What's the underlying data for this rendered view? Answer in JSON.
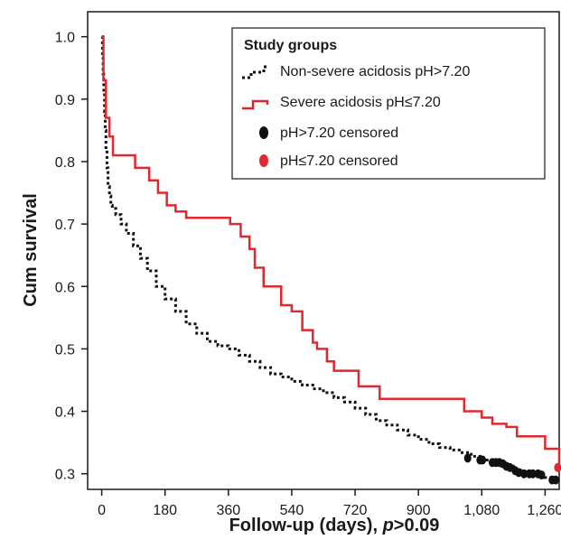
{
  "chart_data": {
    "type": "line",
    "step": true,
    "xlabel": "Follow-up (days), ",
    "xlabel_italic": "p",
    "xlabel_suffix": ">0.09",
    "ylabel": "Cum survival",
    "xlim": [
      -40,
      1300
    ],
    "ylim": [
      0.275,
      1.04
    ],
    "x_ticks": [
      0,
      180,
      360,
      540,
      720,
      900,
      1080,
      1260
    ],
    "x_tick_labels": [
      "0",
      "180",
      "360",
      "540",
      "720",
      "900",
      "1,080",
      "1,260"
    ],
    "y_ticks": [
      0.3,
      0.4,
      0.5,
      0.6,
      0.7,
      0.8,
      0.9,
      1.0
    ],
    "y_tick_labels": [
      "0.3",
      "0.4",
      "0.5",
      "0.6",
      "0.7",
      "0.8",
      "0.9",
      "1.0"
    ],
    "legend": {
      "title": "Study groups",
      "position": "top-right",
      "entries": [
        "Non-severe acidosis pH>7.20",
        "Severe acidosis pH≤7.20",
        "pH>7.20 censored",
        "pH≤7.20 censored"
      ]
    },
    "series": [
      {
        "name": "Non-severe acidosis pH>7.20",
        "color": "#111111",
        "style": "dotted",
        "x": [
          0,
          2,
          4,
          6,
          8,
          10,
          12,
          15,
          18,
          22,
          26,
          30,
          40,
          55,
          70,
          90,
          110,
          130,
          155,
          180,
          210,
          240,
          270,
          300,
          330,
          360,
          390,
          420,
          450,
          480,
          510,
          540,
          570,
          600,
          630,
          660,
          690,
          720,
          750,
          780,
          810,
          840,
          870,
          900,
          930,
          960,
          990,
          1020,
          1050,
          1080,
          1110,
          1140,
          1170,
          1200,
          1230,
          1260,
          1290
        ],
        "y": [
          1.0,
          0.97,
          0.94,
          0.91,
          0.88,
          0.85,
          0.82,
          0.79,
          0.76,
          0.745,
          0.73,
          0.725,
          0.715,
          0.7,
          0.685,
          0.665,
          0.645,
          0.625,
          0.6,
          0.58,
          0.56,
          0.54,
          0.525,
          0.512,
          0.505,
          0.5,
          0.49,
          0.48,
          0.47,
          0.46,
          0.455,
          0.448,
          0.442,
          0.436,
          0.43,
          0.422,
          0.415,
          0.405,
          0.395,
          0.385,
          0.378,
          0.37,
          0.362,
          0.355,
          0.348,
          0.342,
          0.338,
          0.334,
          0.328,
          0.322,
          0.318,
          0.312,
          0.306,
          0.302,
          0.298,
          0.294,
          0.29
        ]
      },
      {
        "name": "Severe acidosis pH≤7.20",
        "color": "#e0282e",
        "style": "solid",
        "x": [
          0,
          5,
          12,
          22,
          32,
          45,
          95,
          135,
          160,
          185,
          210,
          240,
          365,
          395,
          420,
          435,
          460,
          510,
          540,
          570,
          600,
          612,
          640,
          660,
          690,
          730,
          790,
          870,
          1030,
          1080,
          1110,
          1150,
          1180,
          1230,
          1260,
          1290,
          1300
        ],
        "y": [
          1.0,
          0.93,
          0.87,
          0.84,
          0.81,
          0.81,
          0.79,
          0.77,
          0.75,
          0.73,
          0.72,
          0.71,
          0.7,
          0.68,
          0.66,
          0.63,
          0.6,
          0.57,
          0.56,
          0.53,
          0.51,
          0.5,
          0.48,
          0.465,
          0.465,
          0.44,
          0.42,
          0.42,
          0.4,
          0.39,
          0.38,
          0.375,
          0.36,
          0.36,
          0.34,
          0.34,
          0.31
        ]
      }
    ],
    "censored": [
      {
        "name": "pH>7.20 censored",
        "color": "#111111",
        "x": [
          1040,
          1075,
          1082,
          1110,
          1120,
          1130,
          1140,
          1150,
          1160,
          1175,
          1185,
          1200,
          1215,
          1225,
          1240,
          1250,
          1280,
          1290
        ],
        "y": [
          0.325,
          0.322,
          0.322,
          0.318,
          0.318,
          0.318,
          0.316,
          0.312,
          0.31,
          0.305,
          0.302,
          0.3,
          0.3,
          0.3,
          0.3,
          0.298,
          0.29,
          0.29
        ]
      },
      {
        "name": "pH≤7.20 censored",
        "color": "#e0282e",
        "x": [
          1296
        ],
        "y": [
          0.31
        ]
      }
    ]
  }
}
